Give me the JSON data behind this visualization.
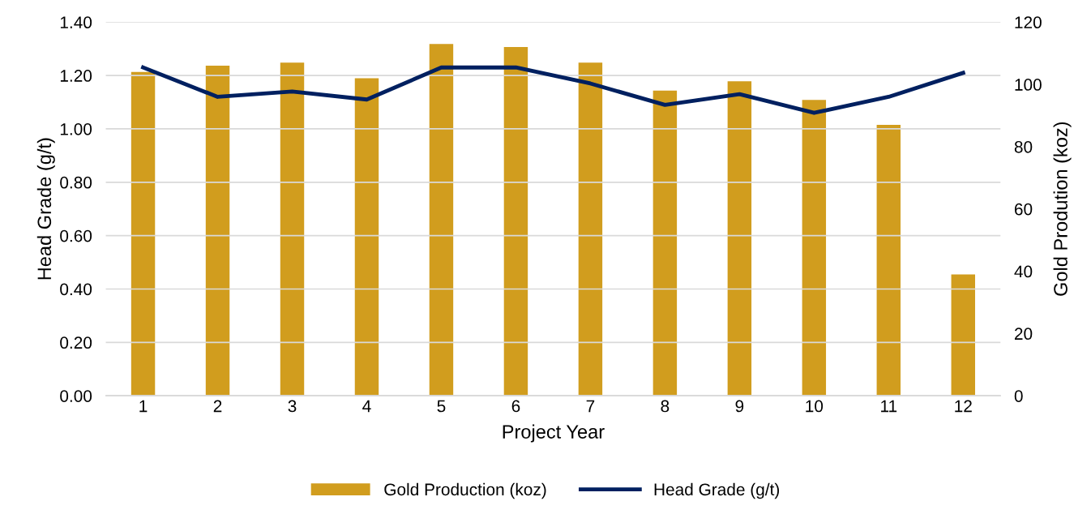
{
  "chart_data": {
    "type": "bar",
    "xlabel": "Project Year",
    "ylabel": "Head Grade (g/t)",
    "y2label": "Gold Prodution (koz)",
    "categories": [
      "1",
      "2",
      "3",
      "4",
      "5",
      "6",
      "7",
      "8",
      "9",
      "10",
      "11",
      "12"
    ],
    "series": [
      {
        "name": "Gold Production (koz)",
        "axis": "y2",
        "color": "#d19d1e",
        "values": [
          104,
          106,
          107,
          102,
          113,
          112,
          107,
          98,
          101,
          95,
          87,
          39
        ]
      },
      {
        "name": "Head Grade (g/t)",
        "type": "line",
        "axis": "y",
        "color": "#002060",
        "values": [
          1.23,
          1.12,
          1.14,
          1.11,
          1.23,
          1.23,
          1.17,
          1.09,
          1.13,
          1.06,
          1.12,
          1.21
        ]
      }
    ],
    "ylim": [
      0,
      1.4
    ],
    "yticks": [
      {
        "value": 0,
        "label": "0.00"
      },
      {
        "value": 0.2,
        "label": "0.20"
      },
      {
        "value": 0.4,
        "label": "0.40"
      },
      {
        "value": 0.6,
        "label": "0.60"
      },
      {
        "value": 0.8,
        "label": "0.80"
      },
      {
        "value": 1.0,
        "label": "1.00"
      },
      {
        "value": 1.2,
        "label": "1.20"
      },
      {
        "value": 1.4,
        "label": "1.40"
      }
    ],
    "y2lim": [
      0,
      120
    ],
    "y2ticks": [
      0,
      20,
      40,
      60,
      80,
      100,
      120
    ],
    "grid": "y",
    "legend": "bottom",
    "marker": "none",
    "line_style": "solid"
  }
}
